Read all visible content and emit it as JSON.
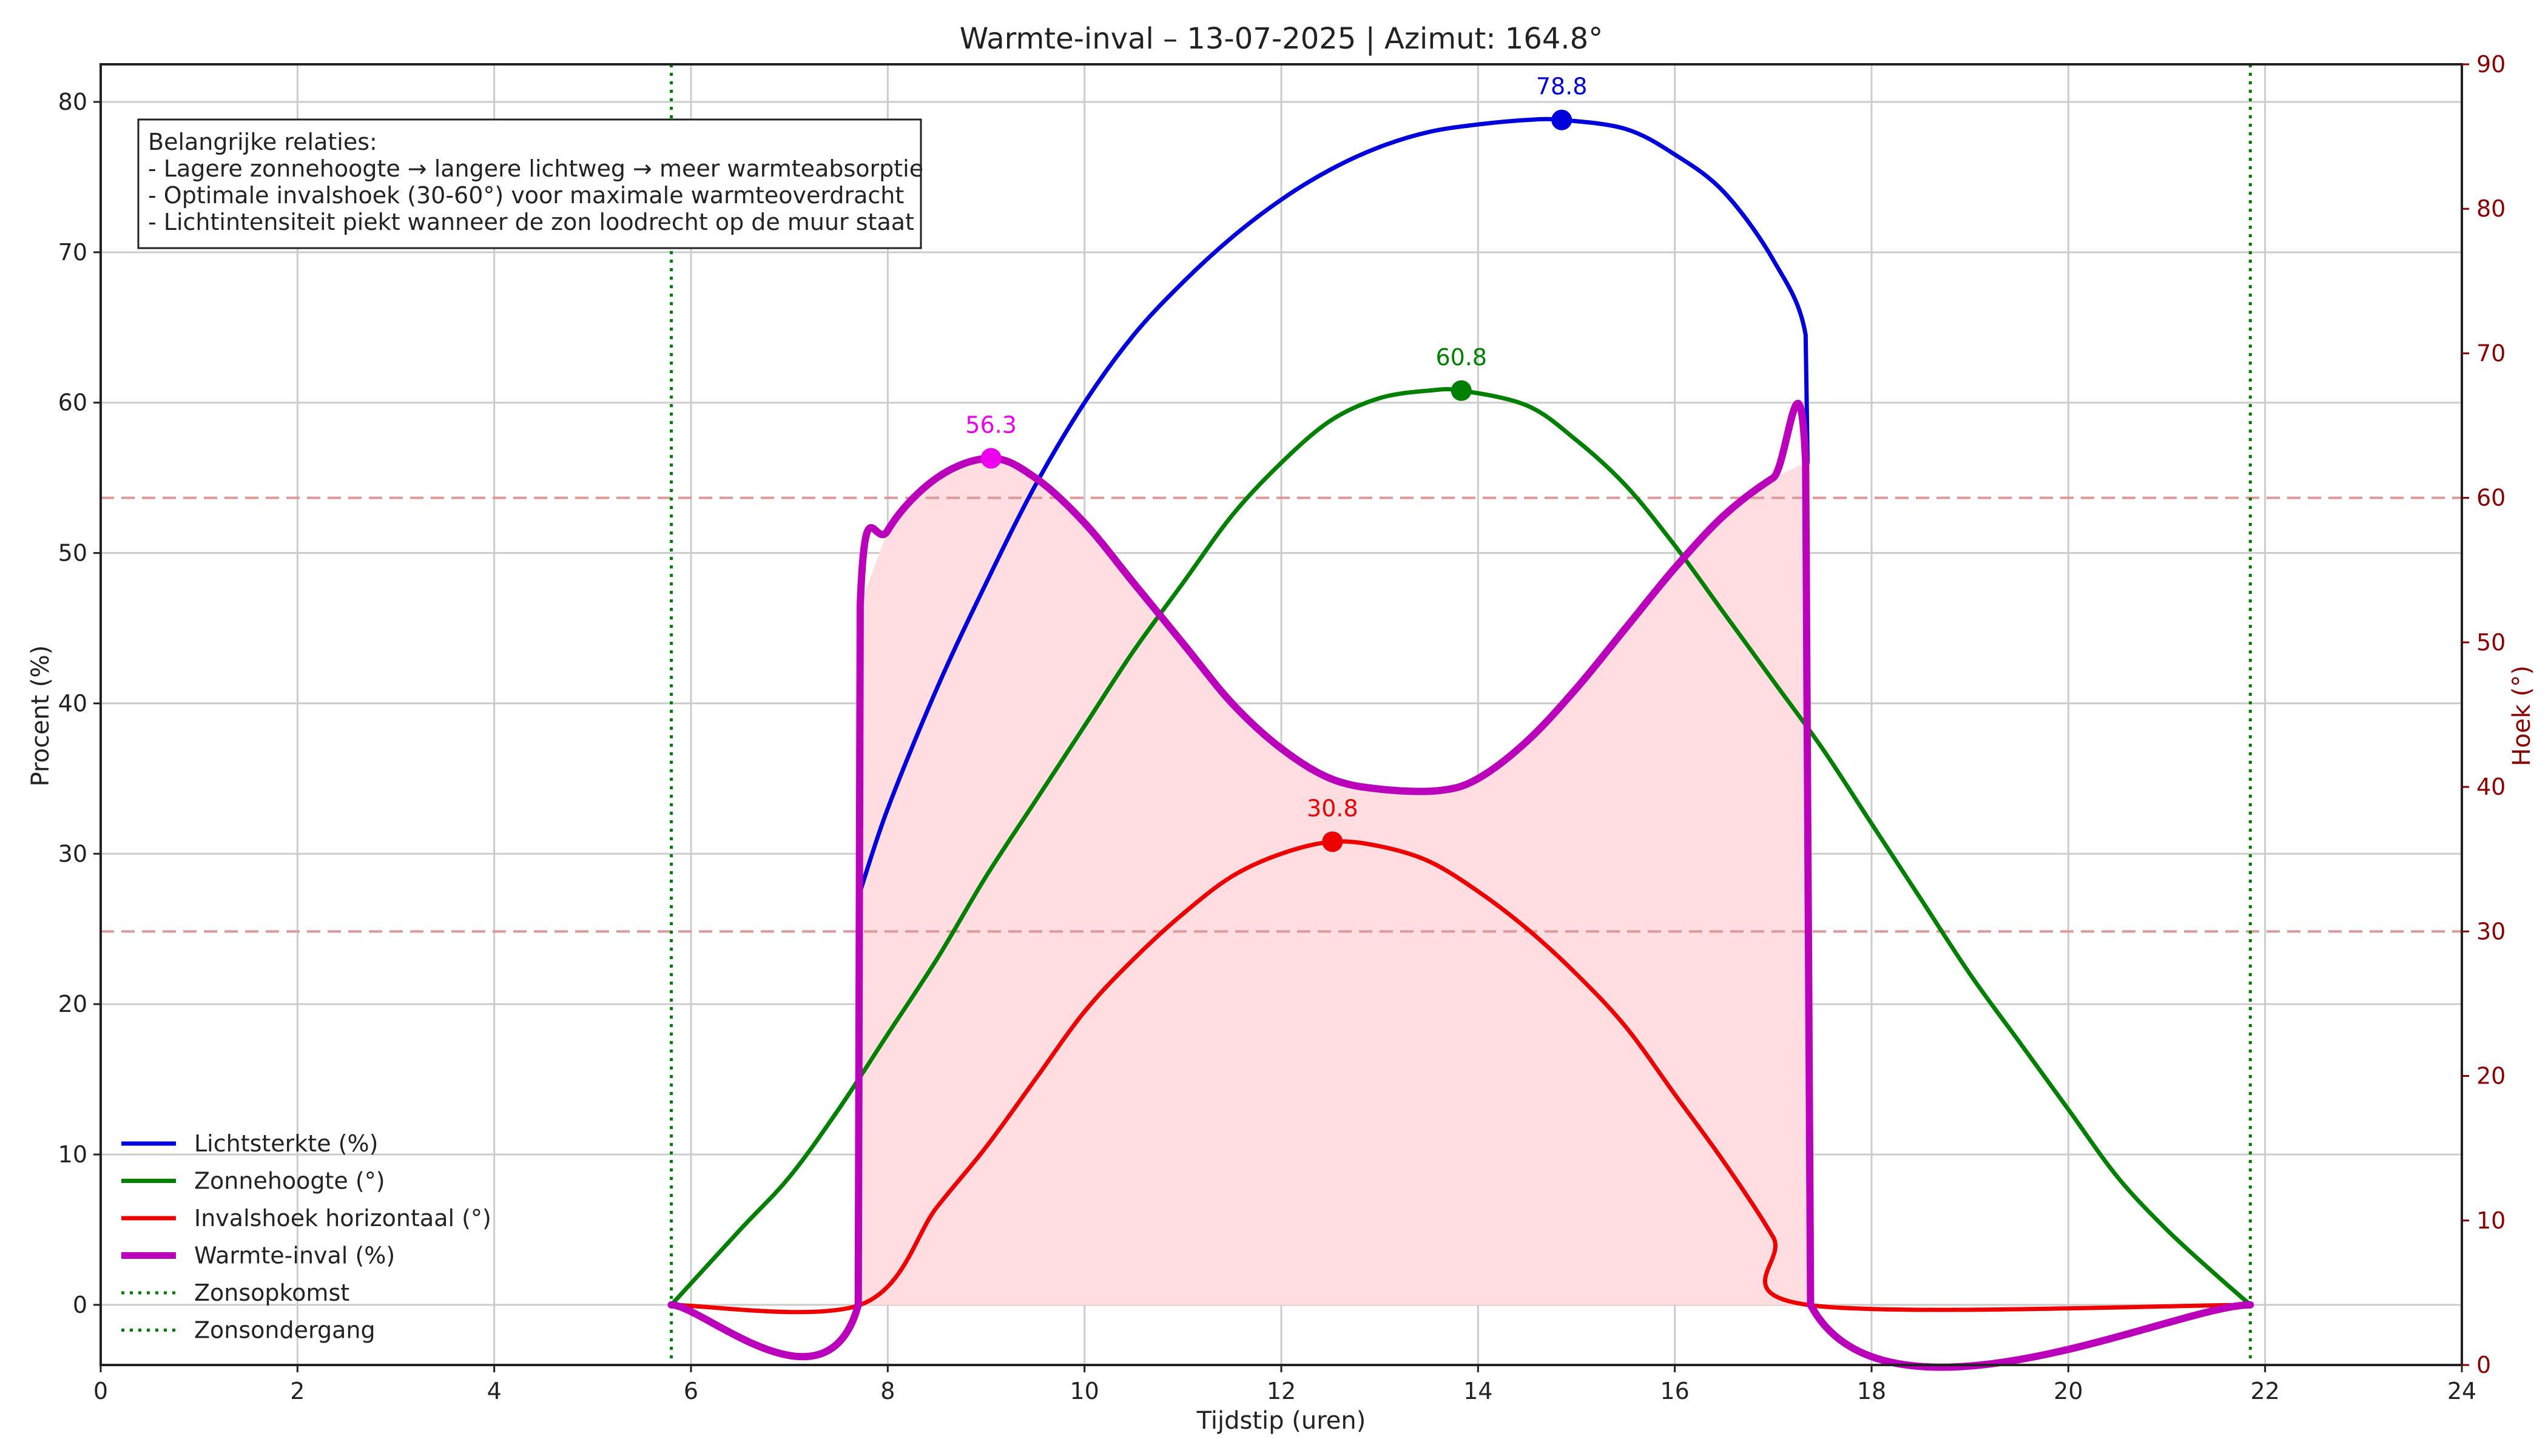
{
  "chart_data": {
    "type": "line",
    "title": "Warmte-inval – 13-07-2025 | Azimut: 164.8°",
    "xlabel": "Tijdstip (uren)",
    "ylabel": "Procent (%)",
    "ylabel_right": "Hoek (°)",
    "xlim": [
      0,
      24
    ],
    "ylim": [
      -4,
      82.5
    ],
    "ylim_right": [
      0,
      90
    ],
    "x_ticks": [
      0,
      2,
      4,
      6,
      8,
      10,
      12,
      14,
      16,
      18,
      20,
      22,
      24
    ],
    "y_ticks": [
      0,
      10,
      20,
      30,
      40,
      50,
      60,
      70,
      80
    ],
    "y_ticks_right": [
      0,
      10,
      20,
      30,
      40,
      50,
      60,
      70,
      80,
      90
    ],
    "grid": true,
    "legend_position": "lower-left",
    "sunrise": 5.8,
    "sunset": 21.85,
    "reference_lines_right_axis": [
      30,
      60
    ],
    "series": [
      {
        "name": "Lichtsterkte (%)",
        "color": "#0000dd",
        "x": [
          7.72,
          8.0,
          8.5,
          9.0,
          9.5,
          10.0,
          10.5,
          11.0,
          11.5,
          12.0,
          12.5,
          13.0,
          13.5,
          14.0,
          14.5,
          14.85,
          15.5,
          16.0,
          16.5,
          17.0,
          17.33,
          17.35
        ],
        "y": [
          27.5,
          33.0,
          41.0,
          48.0,
          54.5,
          60.0,
          64.5,
          68.0,
          71.0,
          73.5,
          75.5,
          77.0,
          78.0,
          78.5,
          78.8,
          78.8,
          78.2,
          76.5,
          74.0,
          69.5,
          64.5,
          56.0
        ]
      },
      {
        "name": "Zonnehoogte (°)",
        "color": "#008000",
        "x": [
          5.8,
          6.5,
          7.0,
          7.5,
          8.0,
          8.5,
          9.0,
          9.5,
          10.0,
          10.5,
          11.0,
          11.5,
          12.0,
          12.5,
          13.0,
          13.5,
          13.83,
          14.5,
          15.0,
          15.5,
          16.0,
          16.5,
          17.0,
          17.5,
          18.0,
          18.5,
          19.0,
          19.5,
          20.0,
          20.5,
          21.0,
          21.5,
          21.85
        ],
        "y": [
          0.0,
          5.0,
          8.5,
          13.0,
          18.0,
          23.0,
          28.5,
          33.5,
          38.5,
          43.5,
          48.0,
          52.5,
          56.0,
          58.8,
          60.3,
          60.8,
          60.8,
          59.8,
          57.5,
          54.5,
          50.5,
          46.0,
          41.5,
          37.0,
          32.0,
          27.0,
          22.0,
          17.5,
          13.0,
          8.5,
          5.0,
          2.0,
          0.0
        ]
      },
      {
        "name": "Invalshoek horizontaal (°)",
        "color": "#ee0000",
        "x": [
          5.8,
          7.72,
          8.5,
          9.0,
          9.5,
          10.0,
          10.5,
          11.0,
          11.5,
          12.0,
          12.52,
          13.0,
          13.5,
          14.0,
          14.5,
          15.0,
          15.5,
          16.0,
          16.5,
          17.0,
          17.35,
          21.85
        ],
        "y": [
          0.0,
          0.0,
          6.5,
          10.5,
          15.0,
          19.5,
          23.0,
          26.0,
          28.5,
          30.0,
          30.8,
          30.5,
          29.5,
          27.5,
          25.0,
          22.0,
          18.5,
          14.0,
          9.5,
          4.5,
          0.0,
          0.0
        ]
      },
      {
        "name": "Warmte-inval (%)",
        "color": "#bb00bb",
        "fill_color": "#ffdde1",
        "x": [
          5.8,
          7.7,
          7.72,
          8.0,
          8.5,
          9.05,
          9.5,
          10.0,
          10.5,
          11.0,
          11.5,
          12.0,
          12.5,
          13.0,
          13.6,
          14.0,
          14.5,
          15.0,
          15.5,
          16.0,
          16.5,
          17.0,
          17.33,
          17.38,
          21.85
        ],
        "y": [
          0.0,
          0.0,
          46.5,
          51.5,
          55.0,
          56.3,
          55.0,
          52.0,
          48.0,
          44.0,
          40.0,
          37.0,
          35.0,
          34.3,
          34.2,
          35.0,
          37.5,
          41.0,
          45.0,
          49.0,
          52.5,
          55.0,
          56.0,
          0.0,
          0.0
        ]
      }
    ],
    "peaks": [
      {
        "series": "Lichtsterkte (%)",
        "x": 14.85,
        "y": 78.8,
        "label": "78.8",
        "color": "#0000dd"
      },
      {
        "series": "Zonnehoogte (°)",
        "x": 13.83,
        "y": 60.8,
        "label": "60.8",
        "color": "#008000"
      },
      {
        "series": "Warmte-inval (%)",
        "x": 9.05,
        "y": 56.3,
        "label": "56.3",
        "color": "#ee00ee"
      },
      {
        "series": "Invalshoek horizontaal (°)",
        "x": 12.52,
        "y": 30.8,
        "label": "30.8",
        "color": "#ee0000"
      }
    ],
    "legend": [
      {
        "label": "Lichtsterkte (%)",
        "color": "#0000dd",
        "style": "solid"
      },
      {
        "label": "Zonnehoogte (°)",
        "color": "#008000",
        "style": "solid"
      },
      {
        "label": "Invalshoek horizontaal (°)",
        "color": "#ee0000",
        "style": "solid"
      },
      {
        "label": "Warmte-inval (%)",
        "color": "#bb00bb",
        "style": "solid-thick"
      },
      {
        "label": "Zonsopkomst",
        "color": "#008000",
        "style": "dotted"
      },
      {
        "label": "Zonsondergang",
        "color": "#008000",
        "style": "dotted"
      }
    ],
    "annotation_lines": [
      "Belangrijke relaties:",
      "- Lagere zonnehoogte → langere lichtweg → meer warmteabsorptie",
      "- Optimale invalshoek (30-60°) voor maximale warmteoverdracht",
      "- Lichtintensiteit piekt wanneer de zon loodrecht op de muur staat"
    ]
  }
}
